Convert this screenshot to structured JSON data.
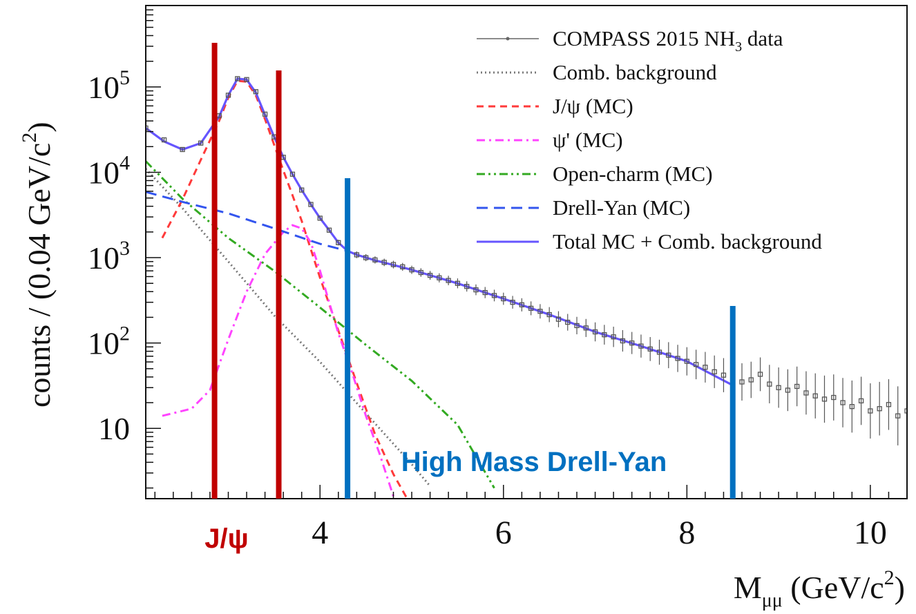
{
  "chart_data": {
    "type": "line",
    "xlabel": {
      "main": "M",
      "sub": "μμ",
      "unit": "(GeV/c",
      "sup": "2",
      "close": ")"
    },
    "ylabel": {
      "main": "counts / (0.04 GeV/c",
      "sup": "2",
      "close": ")"
    },
    "xlim": [
      2.1,
      10.4
    ],
    "ylim": [
      1.5,
      900000
    ],
    "yscale": "log",
    "x_ticks": [
      {
        "value": 4,
        "label": "4"
      },
      {
        "value": 6,
        "label": "6"
      },
      {
        "value": 8,
        "label": "8"
      },
      {
        "value": 10,
        "label": "10"
      }
    ],
    "y_ticks": [
      {
        "value": 10,
        "label": "10",
        "exp": ""
      },
      {
        "value": 100,
        "label": "10",
        "exp": "2"
      },
      {
        "value": 1000,
        "label": "10",
        "exp": "3"
      },
      {
        "value": 10000,
        "label": "10",
        "exp": "4"
      },
      {
        "value": 100000,
        "label": "10",
        "exp": "5"
      }
    ],
    "legend": {
      "position": "top-right",
      "entries": [
        {
          "label": "COMPASS 2015 NH",
          "sub": "3",
          "suffix": " data",
          "style": "data",
          "color": "#666666"
        },
        {
          "label": "Comb. background",
          "style": "dotted",
          "color": "#777777"
        },
        {
          "label": "J/ψ (MC)",
          "style": "dashed",
          "color": "#ff3a3a"
        },
        {
          "label": "ψ' (MC)",
          "style": "dashdot",
          "color": "#ff44ff"
        },
        {
          "label": "Open-charm (MC)",
          "style": "dashdotdot",
          "color": "#33aa22"
        },
        {
          "label": "Drell-Yan (MC)",
          "style": "longdash",
          "color": "#3355ee"
        },
        {
          "label": "Total MC + Comb. background",
          "style": "solid",
          "color": "#6655ff"
        }
      ]
    },
    "series": [
      {
        "name": "COMPASS 2015 NH3 data",
        "kind": "points",
        "color": "#555555",
        "points": [
          [
            2.1,
            33000
          ],
          [
            2.3,
            24000
          ],
          [
            2.5,
            18500
          ],
          [
            2.7,
            22000
          ],
          [
            2.9,
            46000
          ],
          [
            3.0,
            80000
          ],
          [
            3.1,
            125000
          ],
          [
            3.2,
            122000
          ],
          [
            3.3,
            88000
          ],
          [
            3.4,
            48000
          ],
          [
            3.5,
            26000
          ],
          [
            3.6,
            15000
          ],
          [
            3.7,
            9500
          ],
          [
            3.8,
            6200
          ],
          [
            3.9,
            4200
          ],
          [
            4.0,
            2900
          ],
          [
            4.1,
            2100
          ],
          [
            4.2,
            1500
          ],
          [
            4.3,
            1200
          ],
          [
            4.4,
            1080
          ],
          [
            4.5,
            1000
          ],
          [
            4.6,
            940
          ],
          [
            4.7,
            880
          ],
          [
            4.8,
            830
          ],
          [
            4.9,
            780
          ],
          [
            5.0,
            720
          ],
          [
            5.1,
            670
          ],
          [
            5.2,
            620
          ],
          [
            5.3,
            580
          ],
          [
            5.4,
            540
          ],
          [
            5.5,
            500
          ],
          [
            5.6,
            460
          ],
          [
            5.7,
            420
          ],
          [
            5.8,
            390
          ],
          [
            5.9,
            360
          ],
          [
            6.0,
            330
          ],
          [
            6.1,
            300
          ],
          [
            6.2,
            280
          ],
          [
            6.3,
            255
          ],
          [
            6.4,
            235
          ],
          [
            6.5,
            215
          ],
          [
            6.6,
            190
          ],
          [
            6.7,
            175
          ],
          [
            6.8,
            160
          ],
          [
            6.9,
            150
          ],
          [
            7.0,
            135
          ],
          [
            7.1,
            125
          ],
          [
            7.2,
            118
          ],
          [
            7.3,
            106
          ],
          [
            7.4,
            100
          ],
          [
            7.5,
            92
          ],
          [
            7.6,
            85
          ],
          [
            7.7,
            78
          ],
          [
            7.8,
            72
          ],
          [
            7.9,
            66
          ],
          [
            8.0,
            61
          ],
          [
            8.1,
            56
          ],
          [
            8.2,
            52
          ],
          [
            8.3,
            46
          ],
          [
            8.4,
            42
          ],
          [
            8.5,
            37
          ],
          [
            8.6,
            35
          ],
          [
            8.7,
            37
          ],
          [
            8.8,
            43
          ],
          [
            8.9,
            33
          ],
          [
            9.0,
            30
          ],
          [
            9.1,
            28
          ],
          [
            9.2,
            31
          ],
          [
            9.3,
            26
          ],
          [
            9.4,
            24
          ],
          [
            9.5,
            22
          ],
          [
            9.6,
            23
          ],
          [
            9.7,
            20
          ],
          [
            9.8,
            18
          ],
          [
            9.9,
            21
          ],
          [
            10.0,
            16
          ],
          [
            10.1,
            17
          ],
          [
            10.2,
            19
          ],
          [
            10.3,
            14
          ],
          [
            10.4,
            16
          ]
        ]
      },
      {
        "name": "Comb. background",
        "kind": "line",
        "color": "#777777",
        "dash": "2 4",
        "points": [
          [
            2.1,
            11000
          ],
          [
            2.5,
            3800
          ],
          [
            3.0,
            900
          ],
          [
            3.5,
            210
          ],
          [
            4.0,
            60
          ],
          [
            4.5,
            15
          ],
          [
            5.0,
            3.8
          ],
          [
            5.2,
            2.1
          ]
        ]
      },
      {
        "name": "J/ψ (MC)",
        "kind": "line",
        "color": "#ff3a3a",
        "dash": "10 7",
        "points": [
          [
            2.28,
            1700
          ],
          [
            2.5,
            4800
          ],
          [
            2.7,
            14000
          ],
          [
            2.9,
            40000
          ],
          [
            3.0,
            75000
          ],
          [
            3.1,
            118000
          ],
          [
            3.2,
            115000
          ],
          [
            3.3,
            80000
          ],
          [
            3.4,
            42000
          ],
          [
            3.5,
            21000
          ],
          [
            3.6,
            10500
          ],
          [
            3.7,
            5400
          ],
          [
            3.8,
            2700
          ],
          [
            3.9,
            1250
          ],
          [
            4.0,
            580
          ],
          [
            4.2,
            140
          ],
          [
            4.4,
            34
          ],
          [
            4.6,
            8.5
          ],
          [
            4.8,
            2.9
          ],
          [
            4.95,
            1.5
          ]
        ]
      },
      {
        "name": "ψ' (MC)",
        "kind": "line",
        "color": "#ff44ff",
        "dash": "12 6 3 6",
        "points": [
          [
            2.28,
            14
          ],
          [
            2.6,
            17
          ],
          [
            2.8,
            28
          ],
          [
            3.0,
            110
          ],
          [
            3.2,
            400
          ],
          [
            3.4,
            1100
          ],
          [
            3.6,
            2000
          ],
          [
            3.7,
            2400
          ],
          [
            3.8,
            2200
          ],
          [
            3.9,
            1500
          ],
          [
            4.0,
            700
          ],
          [
            4.1,
            300
          ],
          [
            4.2,
            130
          ],
          [
            4.35,
            45
          ],
          [
            4.5,
            14
          ],
          [
            4.65,
            5
          ],
          [
            4.8,
            1.6
          ]
        ]
      },
      {
        "name": "Open-charm (MC)",
        "kind": "line",
        "color": "#33aa22",
        "dash": "12 5 3 5 3 5",
        "points": [
          [
            2.1,
            13500
          ],
          [
            2.5,
            4900
          ],
          [
            3.0,
            1700
          ],
          [
            3.5,
            700
          ],
          [
            4.0,
            260
          ],
          [
            4.5,
            95
          ],
          [
            5.0,
            36
          ],
          [
            5.5,
            11
          ],
          [
            5.9,
            2
          ]
        ]
      },
      {
        "name": "Drell-Yan (MC)",
        "kind": "line",
        "color": "#3355ee",
        "dash": "16 9",
        "points": [
          [
            2.1,
            5900
          ],
          [
            2.5,
            4500
          ],
          [
            3.0,
            3300
          ],
          [
            3.5,
            2200
          ],
          [
            4.0,
            1450
          ],
          [
            4.3,
            1200
          ]
        ]
      },
      {
        "name": "Total MC + Comb. background",
        "kind": "line",
        "color": "#6655ff",
        "dash": "",
        "points": [
          [
            2.1,
            33000
          ],
          [
            2.3,
            23000
          ],
          [
            2.5,
            18500
          ],
          [
            2.7,
            22000
          ],
          [
            2.9,
            45000
          ],
          [
            3.0,
            80000
          ],
          [
            3.1,
            125000
          ],
          [
            3.2,
            122000
          ],
          [
            3.3,
            86000
          ],
          [
            3.4,
            47000
          ],
          [
            3.5,
            26000
          ],
          [
            3.6,
            15000
          ],
          [
            3.7,
            9500
          ],
          [
            3.8,
            6200
          ],
          [
            3.9,
            4200
          ],
          [
            4.0,
            2900
          ],
          [
            4.1,
            2100
          ],
          [
            4.2,
            1500
          ],
          [
            4.3,
            1200
          ],
          [
            4.4,
            1080
          ],
          [
            4.6,
            930
          ],
          [
            4.8,
            820
          ],
          [
            5.0,
            720
          ],
          [
            5.5,
            500
          ],
          [
            6.0,
            330
          ],
          [
            6.5,
            215
          ],
          [
            7.0,
            135
          ],
          [
            7.5,
            92
          ],
          [
            8.0,
            61
          ],
          [
            8.5,
            32
          ]
        ]
      }
    ],
    "annotations": {
      "jpsi_lines": {
        "x": [
          2.85,
          3.55
        ],
        "color": "#c00000"
      },
      "dy_lines": {
        "x": [
          4.3,
          8.5
        ],
        "color": "#0070c0"
      },
      "jpsi_label": "J/ψ",
      "dy_label": "High Mass Drell-Yan"
    }
  }
}
